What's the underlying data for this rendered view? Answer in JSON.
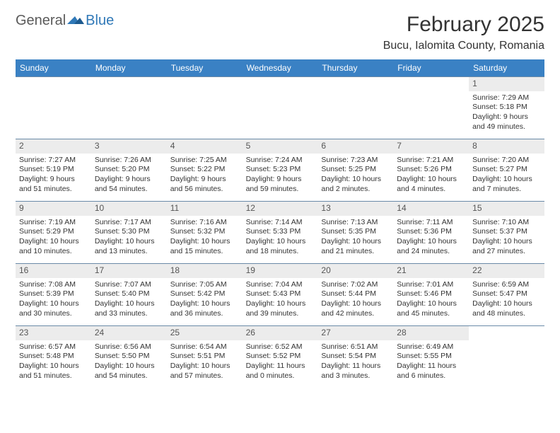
{
  "logo": {
    "text1": "General",
    "text2": "Blue"
  },
  "title": "February 2025",
  "location": "Bucu, Ialomita County, Romania",
  "header_bg": "#3a81c4",
  "border_color": "#6a8aa8",
  "daynum_bg": "#ececec",
  "day_headers": [
    "Sunday",
    "Monday",
    "Tuesday",
    "Wednesday",
    "Thursday",
    "Friday",
    "Saturday"
  ],
  "cells": [
    {
      "empty": true
    },
    {
      "empty": true
    },
    {
      "empty": true
    },
    {
      "empty": true
    },
    {
      "empty": true
    },
    {
      "empty": true
    },
    {
      "day": "1",
      "sunrise": "Sunrise: 7:29 AM",
      "sunset": "Sunset: 5:18 PM",
      "daylight1": "Daylight: 9 hours",
      "daylight2": "and 49 minutes."
    },
    {
      "day": "2",
      "sunrise": "Sunrise: 7:27 AM",
      "sunset": "Sunset: 5:19 PM",
      "daylight1": "Daylight: 9 hours",
      "daylight2": "and 51 minutes."
    },
    {
      "day": "3",
      "sunrise": "Sunrise: 7:26 AM",
      "sunset": "Sunset: 5:20 PM",
      "daylight1": "Daylight: 9 hours",
      "daylight2": "and 54 minutes."
    },
    {
      "day": "4",
      "sunrise": "Sunrise: 7:25 AM",
      "sunset": "Sunset: 5:22 PM",
      "daylight1": "Daylight: 9 hours",
      "daylight2": "and 56 minutes."
    },
    {
      "day": "5",
      "sunrise": "Sunrise: 7:24 AM",
      "sunset": "Sunset: 5:23 PM",
      "daylight1": "Daylight: 9 hours",
      "daylight2": "and 59 minutes."
    },
    {
      "day": "6",
      "sunrise": "Sunrise: 7:23 AM",
      "sunset": "Sunset: 5:25 PM",
      "daylight1": "Daylight: 10 hours",
      "daylight2": "and 2 minutes."
    },
    {
      "day": "7",
      "sunrise": "Sunrise: 7:21 AM",
      "sunset": "Sunset: 5:26 PM",
      "daylight1": "Daylight: 10 hours",
      "daylight2": "and 4 minutes."
    },
    {
      "day": "8",
      "sunrise": "Sunrise: 7:20 AM",
      "sunset": "Sunset: 5:27 PM",
      "daylight1": "Daylight: 10 hours",
      "daylight2": "and 7 minutes."
    },
    {
      "day": "9",
      "sunrise": "Sunrise: 7:19 AM",
      "sunset": "Sunset: 5:29 PM",
      "daylight1": "Daylight: 10 hours",
      "daylight2": "and 10 minutes."
    },
    {
      "day": "10",
      "sunrise": "Sunrise: 7:17 AM",
      "sunset": "Sunset: 5:30 PM",
      "daylight1": "Daylight: 10 hours",
      "daylight2": "and 13 minutes."
    },
    {
      "day": "11",
      "sunrise": "Sunrise: 7:16 AM",
      "sunset": "Sunset: 5:32 PM",
      "daylight1": "Daylight: 10 hours",
      "daylight2": "and 15 minutes."
    },
    {
      "day": "12",
      "sunrise": "Sunrise: 7:14 AM",
      "sunset": "Sunset: 5:33 PM",
      "daylight1": "Daylight: 10 hours",
      "daylight2": "and 18 minutes."
    },
    {
      "day": "13",
      "sunrise": "Sunrise: 7:13 AM",
      "sunset": "Sunset: 5:35 PM",
      "daylight1": "Daylight: 10 hours",
      "daylight2": "and 21 minutes."
    },
    {
      "day": "14",
      "sunrise": "Sunrise: 7:11 AM",
      "sunset": "Sunset: 5:36 PM",
      "daylight1": "Daylight: 10 hours",
      "daylight2": "and 24 minutes."
    },
    {
      "day": "15",
      "sunrise": "Sunrise: 7:10 AM",
      "sunset": "Sunset: 5:37 PM",
      "daylight1": "Daylight: 10 hours",
      "daylight2": "and 27 minutes."
    },
    {
      "day": "16",
      "sunrise": "Sunrise: 7:08 AM",
      "sunset": "Sunset: 5:39 PM",
      "daylight1": "Daylight: 10 hours",
      "daylight2": "and 30 minutes."
    },
    {
      "day": "17",
      "sunrise": "Sunrise: 7:07 AM",
      "sunset": "Sunset: 5:40 PM",
      "daylight1": "Daylight: 10 hours",
      "daylight2": "and 33 minutes."
    },
    {
      "day": "18",
      "sunrise": "Sunrise: 7:05 AM",
      "sunset": "Sunset: 5:42 PM",
      "daylight1": "Daylight: 10 hours",
      "daylight2": "and 36 minutes."
    },
    {
      "day": "19",
      "sunrise": "Sunrise: 7:04 AM",
      "sunset": "Sunset: 5:43 PM",
      "daylight1": "Daylight: 10 hours",
      "daylight2": "and 39 minutes."
    },
    {
      "day": "20",
      "sunrise": "Sunrise: 7:02 AM",
      "sunset": "Sunset: 5:44 PM",
      "daylight1": "Daylight: 10 hours",
      "daylight2": "and 42 minutes."
    },
    {
      "day": "21",
      "sunrise": "Sunrise: 7:01 AM",
      "sunset": "Sunset: 5:46 PM",
      "daylight1": "Daylight: 10 hours",
      "daylight2": "and 45 minutes."
    },
    {
      "day": "22",
      "sunrise": "Sunrise: 6:59 AM",
      "sunset": "Sunset: 5:47 PM",
      "daylight1": "Daylight: 10 hours",
      "daylight2": "and 48 minutes."
    },
    {
      "day": "23",
      "sunrise": "Sunrise: 6:57 AM",
      "sunset": "Sunset: 5:48 PM",
      "daylight1": "Daylight: 10 hours",
      "daylight2": "and 51 minutes."
    },
    {
      "day": "24",
      "sunrise": "Sunrise: 6:56 AM",
      "sunset": "Sunset: 5:50 PM",
      "daylight1": "Daylight: 10 hours",
      "daylight2": "and 54 minutes."
    },
    {
      "day": "25",
      "sunrise": "Sunrise: 6:54 AM",
      "sunset": "Sunset: 5:51 PM",
      "daylight1": "Daylight: 10 hours",
      "daylight2": "and 57 minutes."
    },
    {
      "day": "26",
      "sunrise": "Sunrise: 6:52 AM",
      "sunset": "Sunset: 5:52 PM",
      "daylight1": "Daylight: 11 hours",
      "daylight2": "and 0 minutes."
    },
    {
      "day": "27",
      "sunrise": "Sunrise: 6:51 AM",
      "sunset": "Sunset: 5:54 PM",
      "daylight1": "Daylight: 11 hours",
      "daylight2": "and 3 minutes."
    },
    {
      "day": "28",
      "sunrise": "Sunrise: 6:49 AM",
      "sunset": "Sunset: 5:55 PM",
      "daylight1": "Daylight: 11 hours",
      "daylight2": "and 6 minutes."
    },
    {
      "empty": true
    }
  ]
}
